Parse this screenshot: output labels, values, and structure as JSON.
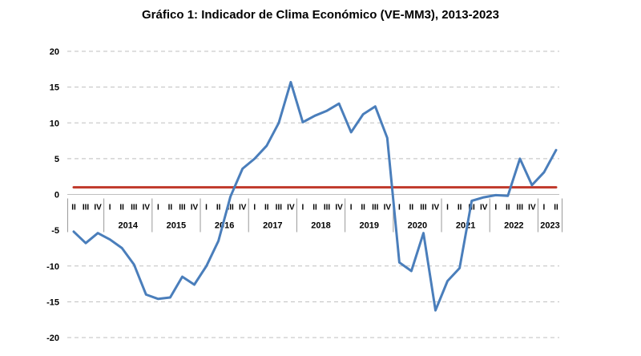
{
  "chart_data": {
    "type": "line",
    "title": "Gráfico 1: Indicador de Clima Económico (VE-MM3), 2013-2023",
    "xlabel": "",
    "ylabel": "",
    "ylim": [
      -20,
      20
    ],
    "yticks": [
      20,
      15,
      10,
      5,
      0,
      -5,
      -10,
      -15,
      -20
    ],
    "grid": true,
    "x": [
      "2013-II",
      "2013-III",
      "2013-IV",
      "2014-I",
      "2014-II",
      "2014-III",
      "2014-IV",
      "2015-I",
      "2015-II",
      "2015-III",
      "2015-IV",
      "2016-I",
      "2016-II",
      "2016-III",
      "2016-IV",
      "2017-I",
      "2017-II",
      "2017-III",
      "2017-IV",
      "2018-I",
      "2018-II",
      "2018-III",
      "2018-IV",
      "2019-I",
      "2019-II",
      "2019-III",
      "2019-IV",
      "2020-I",
      "2020-II",
      "2020-III",
      "2020-IV",
      "2021-I",
      "2021-II",
      "2021-III",
      "2021-IV",
      "2022-I",
      "2022-II",
      "2022-III",
      "2022-IV",
      "2023-I",
      "2023-II"
    ],
    "quarter_labels": [
      "II",
      "III",
      "IV",
      "I",
      "II",
      "III",
      "IV",
      "I",
      "II",
      "III",
      "IV",
      "I",
      "II",
      "III",
      "IV",
      "I",
      "II",
      "III",
      "IV",
      "I",
      "II",
      "III",
      "IV",
      "I",
      "II",
      "III",
      "IV",
      "I",
      "II",
      "III",
      "IV",
      "I",
      "II",
      "III",
      "IV",
      "I",
      "II",
      "III",
      "IV",
      "I",
      "II"
    ],
    "year_groups": [
      {
        "label": "",
        "count": 3
      },
      {
        "label": "2014",
        "count": 4
      },
      {
        "label": "2015",
        "count": 4
      },
      {
        "label": "2016",
        "count": 4
      },
      {
        "label": "2017",
        "count": 4
      },
      {
        "label": "2018",
        "count": 4
      },
      {
        "label": "2019",
        "count": 4
      },
      {
        "label": "2020",
        "count": 4
      },
      {
        "label": "2021",
        "count": 4
      },
      {
        "label": "2022",
        "count": 4
      },
      {
        "label": "2023",
        "count": 2
      }
    ],
    "series": [
      {
        "color": "#4a7ebb",
        "values": [
          -5.2,
          -6.8,
          -5.4,
          -6.3,
          -7.5,
          -9.8,
          -14.0,
          -14.6,
          -14.4,
          -11.5,
          -12.6,
          -10.0,
          -6.5,
          -0.3,
          3.6,
          5.0,
          6.8,
          10.0,
          15.7,
          10.1,
          11.0,
          11.7,
          12.7,
          8.7,
          11.2,
          12.3,
          7.9,
          -9.5,
          -10.7,
          -5.4,
          -16.2,
          -12.1,
          -10.3,
          -0.9,
          -0.4,
          -0.1,
          -0.2,
          5.0,
          1.3,
          3.1,
          6.2
        ]
      },
      {
        "color": "#c0392b",
        "values": [
          1.0,
          1.0,
          1.0,
          1.0,
          1.0,
          1.0,
          1.0,
          1.0,
          1.0,
          1.0,
          1.0,
          1.0,
          1.0,
          1.0,
          1.0,
          1.0,
          1.0,
          1.0,
          1.0,
          1.0,
          1.0,
          1.0,
          1.0,
          1.0,
          1.0,
          1.0,
          1.0,
          1.0,
          1.0,
          1.0,
          1.0,
          1.0,
          1.0,
          1.0,
          1.0,
          1.0,
          1.0,
          1.0,
          1.0,
          1.0,
          1.0
        ]
      }
    ]
  }
}
